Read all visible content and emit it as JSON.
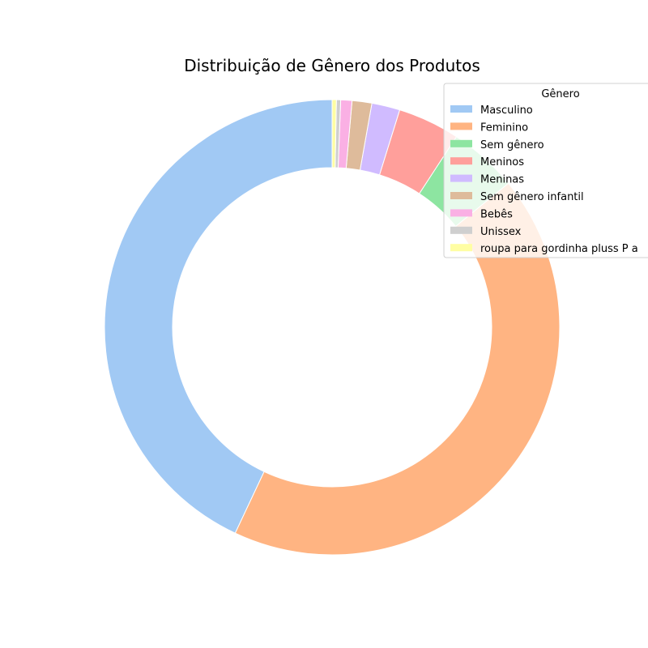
{
  "chart_data": {
    "type": "pie",
    "subtype": "donut",
    "title": "Distribuição de Gênero dos Produtos",
    "legend": {
      "title": "Gênero",
      "placement": "top-right"
    },
    "start_angle_deg": 90,
    "direction": "counterclockwise",
    "slices": [
      {
        "label": "Masculino",
        "value": 43.0,
        "color": "#a1c9f4"
      },
      {
        "label": "Feminino",
        "value": 42.9,
        "color": "#ffb482"
      },
      {
        "label": "Sem gênero",
        "value": 4.9,
        "color": "#8de5a1"
      },
      {
        "label": "Meninos",
        "value": 4.4,
        "color": "#ff9f9b"
      },
      {
        "label": "Meninas",
        "value": 2.0,
        "color": "#d0bbff"
      },
      {
        "label": "Sem gênero infantil",
        "value": 1.4,
        "color": "#debb9b"
      },
      {
        "label": "Bebês",
        "value": 0.8,
        "color": "#fab0e4"
      },
      {
        "label": "Unissex",
        "value": 0.3,
        "color": "#cfcfcf"
      },
      {
        "label": "roupa para gordinha pluss P a",
        "value": 0.3,
        "color": "#fffea3"
      }
    ]
  }
}
